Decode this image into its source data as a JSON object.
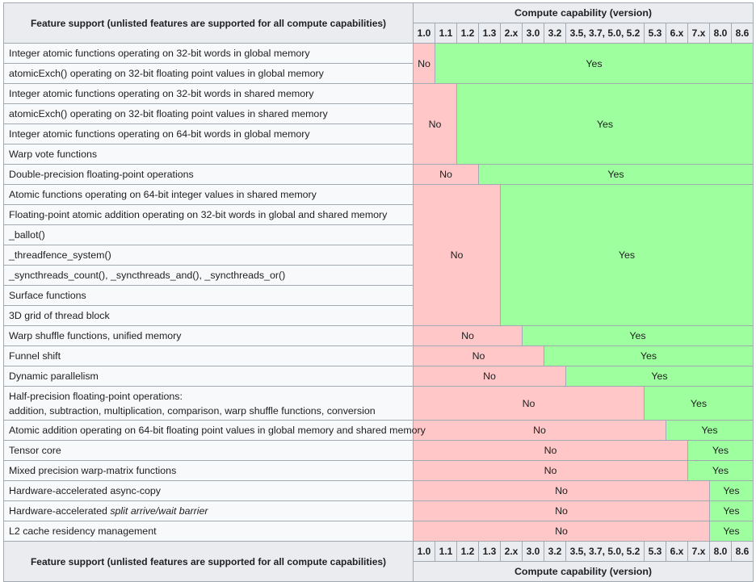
{
  "header": {
    "feature_label": "Feature support (unlisted features are supported for all compute capabilities)",
    "capability_label": "Compute capability (version)",
    "versions": [
      "1.0",
      "1.1",
      "1.2",
      "1.3",
      "2.x",
      "3.0",
      "3.2",
      "3.5, 3.7, 5.0, 5.2",
      "5.3",
      "6.x",
      "7.x",
      "8.0",
      "8.6"
    ]
  },
  "no_label": "No",
  "yes_label": "Yes",
  "colors": {
    "no": "#ffc7c7",
    "yes": "#9eff9e",
    "header": "#eaecf0"
  },
  "features": [
    "Integer atomic functions operating on 32-bit words in global memory",
    "atomicExch() operating on 32-bit floating point values in global memory",
    "Integer atomic functions operating on 32-bit words in shared memory",
    "atomicExch() operating on 32-bit floating point values in shared memory",
    "Integer atomic functions operating on 64-bit words in global memory",
    "Warp vote functions",
    "Double-precision floating-point operations",
    "Atomic functions operating on 64-bit integer values in shared memory",
    "Floating-point atomic addition operating on 32-bit words in global and shared memory",
    "_ballot()",
    "_threadfence_system()",
    "_syncthreads_count(), _syncthreads_and(), _syncthreads_or()",
    "Surface functions",
    "3D grid of thread block",
    "Warp shuffle functions, unified memory",
    "Funnel shift",
    "Dynamic parallelism",
    "Half-precision floating-point operations:",
    "addition, subtraction, multiplication, comparison, warp shuffle functions, conversion",
    "Atomic addition operating on 64-bit floating point values in global memory and shared memory",
    "Tensor core",
    "Mixed precision warp-matrix functions",
    "Hardware-accelerated async-copy",
    "Hardware-accelerated ",
    "split arrive/wait barrier",
    "L2 cache residency management"
  ]
}
